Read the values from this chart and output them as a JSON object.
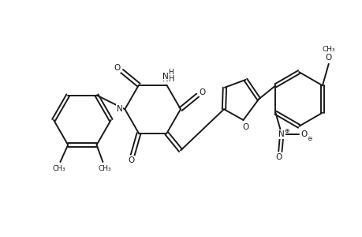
{
  "background_color": "#ffffff",
  "line_color": "#1a1a1a",
  "line_width": 1.4,
  "figure_width": 4.6,
  "figure_height": 3.0,
  "dpi": 100,
  "font_size": 7.5,
  "xlim": [
    0,
    460
  ],
  "ylim": [
    0,
    300
  ]
}
